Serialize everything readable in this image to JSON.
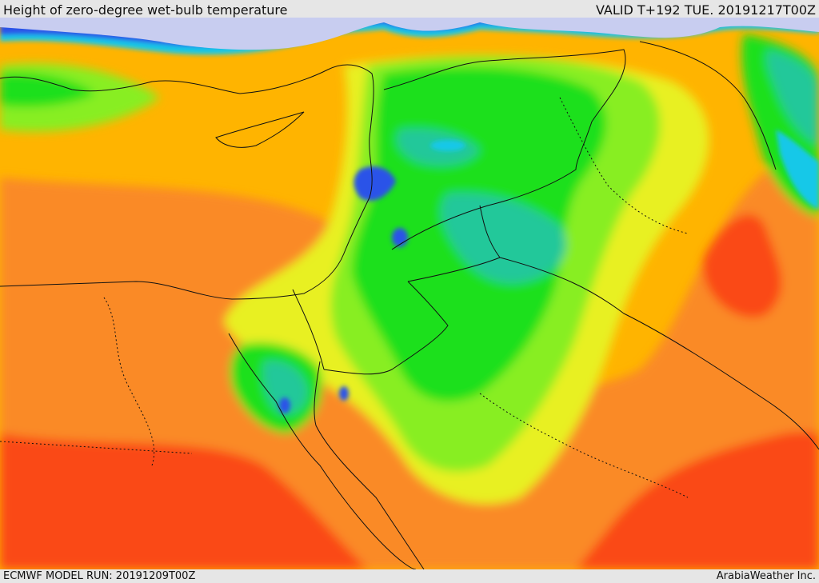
{
  "header": {
    "title": "Height of zero-degree wet-bulb temperature",
    "valid": "VALID T+192 TUE. 20191217T00Z"
  },
  "footer": {
    "model_run": "ECMWF MODEL RUN: 20191209T00Z",
    "brand": "ArabiaWeather Inc."
  },
  "palette": {
    "snow": "#c8cdf0",
    "blue": "#2a52e8",
    "cyan": "#18c8e8",
    "teal": "#22c89a",
    "green": "#1ee01e",
    "light_green": "#88ee22",
    "yellow": "#e8f020",
    "amber": "#ffb400",
    "orange": "#fa8a28",
    "red": "#fa4a14"
  }
}
